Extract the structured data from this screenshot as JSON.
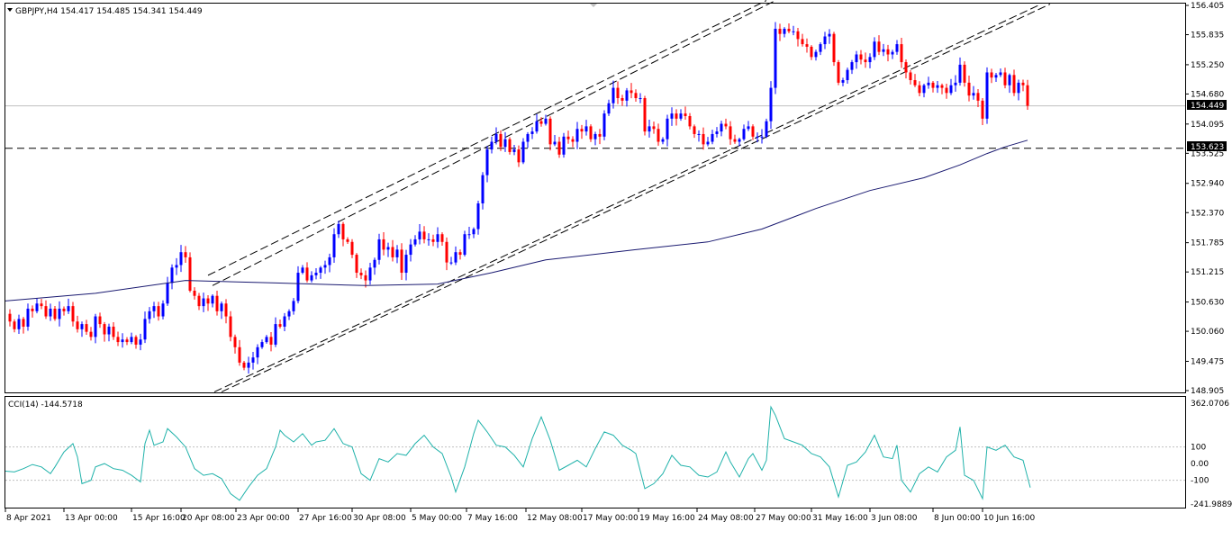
{
  "window": {
    "symbol_line": "GBPJPY,H4  154.417 154.485 154.341 154.449",
    "menu_arrow_icon": "triangle-down"
  },
  "price_axis": {
    "ticks": [
      "156.405",
      "155.835",
      "155.250",
      "154.680",
      "154.095",
      "153.525",
      "152.940",
      "152.370",
      "151.785",
      "151.215",
      "150.630",
      "150.060",
      "149.475",
      "148.905"
    ],
    "current_price": "154.449",
    "level_price": "153.623"
  },
  "cci": {
    "label": "CCI(14) -144.5718",
    "ticks": [
      "362.0706",
      "100",
      "0.00",
      "-100",
      "-241.9889"
    ]
  },
  "time_axis": {
    "labels": [
      "8 Apr 2021",
      "13 Apr 00:00",
      "15 Apr 16:00",
      "20 Apr 08:00",
      "23 Apr 00:00",
      "27 Apr 16:00",
      "30 Apr 08:00",
      "5 May 00:00",
      "7 May 16:00",
      "12 May 08:00",
      "17 May 00:00",
      "19 May 16:00",
      "24 May 08:00",
      "27 May 00:00",
      "31 May 16:00",
      "3 Jun 08:00",
      "8 Jun 00:00",
      "10 Jun 16:00"
    ]
  },
  "colors": {
    "bull": "#0000ff",
    "bear": "#ff0000",
    "ma": "#191970",
    "cci": "#20b2aa",
    "grid_border": "#000000",
    "price_tag_bg": "#000000",
    "price_tag_text": "#ffffff"
  },
  "chart_data": {
    "type": "candlestick",
    "symbol": "GBPJPY",
    "timeframe": "H4",
    "ohlc_last": {
      "open": 154.417,
      "high": 154.485,
      "low": 154.341,
      "close": 154.449
    },
    "ylim": [
      148.905,
      156.405
    ],
    "close_path": [
      [
        0,
        150.4
      ],
      [
        5,
        150.25
      ],
      [
        10,
        150.1
      ],
      [
        15,
        150.3
      ],
      [
        20,
        150.15
      ],
      [
        25,
        150.5
      ],
      [
        30,
        150.45
      ],
      [
        35,
        150.6
      ],
      [
        40,
        150.55
      ],
      [
        45,
        150.35
      ],
      [
        50,
        150.5
      ],
      [
        55,
        150.3
      ],
      [
        60,
        150.5
      ],
      [
        65,
        150.45
      ],
      [
        70,
        150.55
      ],
      [
        75,
        150.25
      ],
      [
        80,
        150.1
      ],
      [
        85,
        150.2
      ],
      [
        90,
        150.05
      ],
      [
        95,
        149.95
      ],
      [
        100,
        150.35
      ],
      [
        105,
        150.2
      ],
      [
        110,
        150.0
      ],
      [
        115,
        150.15
      ],
      [
        120,
        149.95
      ],
      [
        125,
        149.85
      ],
      [
        130,
        149.9
      ],
      [
        135,
        149.85
      ],
      [
        140,
        149.95
      ],
      [
        145,
        149.8
      ],
      [
        150,
        149.9
      ],
      [
        155,
        150.3
      ],
      [
        160,
        150.45
      ],
      [
        165,
        150.55
      ],
      [
        170,
        150.35
      ],
      [
        175,
        150.6
      ],
      [
        180,
        151.0
      ],
      [
        185,
        151.3
      ],
      [
        190,
        151.35
      ],
      [
        195,
        151.6
      ],
      [
        200,
        151.5
      ],
      [
        205,
        150.85
      ],
      [
        210,
        150.75
      ],
      [
        215,
        150.55
      ],
      [
        220,
        150.7
      ],
      [
        225,
        150.6
      ],
      [
        230,
        150.75
      ],
      [
        235,
        150.45
      ],
      [
        240,
        150.6
      ],
      [
        245,
        150.35
      ],
      [
        250,
        149.95
      ],
      [
        255,
        149.75
      ],
      [
        260,
        149.45
      ],
      [
        265,
        149.35
      ],
      [
        270,
        149.45
      ],
      [
        275,
        149.55
      ],
      [
        280,
        149.75
      ],
      [
        285,
        149.85
      ],
      [
        290,
        149.95
      ],
      [
        295,
        149.8
      ],
      [
        300,
        150.2
      ],
      [
        305,
        150.15
      ],
      [
        310,
        150.35
      ],
      [
        315,
        150.45
      ],
      [
        320,
        150.65
      ],
      [
        325,
        151.2
      ],
      [
        330,
        151.3
      ],
      [
        335,
        151.05
      ],
      [
        340,
        151.15
      ],
      [
        345,
        151.2
      ],
      [
        350,
        151.3
      ],
      [
        355,
        151.35
      ],
      [
        360,
        151.5
      ],
      [
        365,
        151.95
      ],
      [
        370,
        152.15
      ],
      [
        375,
        151.85
      ],
      [
        380,
        151.8
      ],
      [
        385,
        151.55
      ],
      [
        390,
        151.2
      ],
      [
        395,
        151.15
      ],
      [
        400,
        151.05
      ],
      [
        405,
        151.3
      ],
      [
        410,
        151.45
      ],
      [
        415,
        151.85
      ],
      [
        420,
        151.65
      ],
      [
        425,
        151.7
      ],
      [
        430,
        151.5
      ],
      [
        435,
        151.65
      ],
      [
        440,
        151.2
      ],
      [
        445,
        151.55
      ],
      [
        450,
        151.75
      ],
      [
        455,
        151.85
      ],
      [
        460,
        152.0
      ],
      [
        465,
        151.85
      ],
      [
        470,
        151.85
      ],
      [
        475,
        151.8
      ],
      [
        480,
        151.95
      ],
      [
        485,
        151.8
      ],
      [
        490,
        151.4
      ],
      [
        495,
        151.4
      ],
      [
        500,
        151.6
      ],
      [
        505,
        151.55
      ],
      [
        510,
        151.95
      ],
      [
        515,
        151.95
      ],
      [
        520,
        152.05
      ],
      [
        525,
        152.55
      ],
      [
        530,
        153.1
      ],
      [
        535,
        153.6
      ],
      [
        540,
        153.75
      ],
      [
        545,
        153.9
      ],
      [
        550,
        153.65
      ],
      [
        555,
        153.8
      ],
      [
        560,
        153.55
      ],
      [
        565,
        153.6
      ],
      [
        570,
        153.35
      ],
      [
        575,
        153.75
      ],
      [
        580,
        153.9
      ],
      [
        585,
        153.95
      ],
      [
        590,
        154.15
      ],
      [
        595,
        154.1
      ],
      [
        600,
        154.2
      ],
      [
        605,
        153.7
      ],
      [
        610,
        153.75
      ],
      [
        615,
        153.5
      ],
      [
        620,
        153.85
      ],
      [
        625,
        153.8
      ],
      [
        630,
        153.75
      ],
      [
        635,
        154.0
      ],
      [
        640,
        153.95
      ],
      [
        645,
        154.05
      ],
      [
        650,
        153.8
      ],
      [
        655,
        153.9
      ],
      [
        660,
        153.85
      ],
      [
        665,
        154.3
      ],
      [
        670,
        154.5
      ],
      [
        675,
        154.8
      ],
      [
        680,
        154.6
      ],
      [
        685,
        154.55
      ],
      [
        690,
        154.75
      ],
      [
        695,
        154.7
      ],
      [
        700,
        154.6
      ],
      [
        705,
        154.6
      ],
      [
        710,
        153.95
      ],
      [
        715,
        154.05
      ],
      [
        720,
        154.0
      ],
      [
        725,
        153.75
      ],
      [
        730,
        153.8
      ],
      [
        735,
        154.2
      ],
      [
        740,
        154.3
      ],
      [
        745,
        154.2
      ],
      [
        750,
        154.3
      ],
      [
        755,
        154.25
      ],
      [
        760,
        154.05
      ],
      [
        765,
        153.9
      ],
      [
        770,
        153.9
      ],
      [
        775,
        153.7
      ],
      [
        780,
        153.75
      ],
      [
        785,
        153.9
      ],
      [
        790,
        153.95
      ],
      [
        795,
        154.1
      ],
      [
        800,
        154.05
      ],
      [
        805,
        153.8
      ],
      [
        810,
        153.75
      ],
      [
        815,
        153.8
      ],
      [
        820,
        154.0
      ],
      [
        825,
        154.05
      ],
      [
        830,
        153.85
      ],
      [
        835,
        153.85
      ],
      [
        840,
        153.85
      ],
      [
        845,
        154.15
      ],
      [
        850,
        154.8
      ],
      [
        855,
        155.95
      ],
      [
        860,
        155.85
      ],
      [
        865,
        155.95
      ],
      [
        870,
        155.9
      ],
      [
        875,
        155.9
      ],
      [
        880,
        155.75
      ],
      [
        885,
        155.65
      ],
      [
        890,
        155.6
      ],
      [
        895,
        155.4
      ],
      [
        900,
        155.5
      ],
      [
        905,
        155.65
      ],
      [
        910,
        155.8
      ],
      [
        915,
        155.85
      ],
      [
        920,
        155.3
      ],
      [
        925,
        154.9
      ],
      [
        930,
        154.95
      ],
      [
        935,
        155.15
      ],
      [
        940,
        155.3
      ],
      [
        945,
        155.45
      ],
      [
        950,
        155.35
      ],
      [
        955,
        155.3
      ],
      [
        960,
        155.4
      ],
      [
        965,
        155.7
      ],
      [
        970,
        155.5
      ],
      [
        975,
        155.55
      ],
      [
        980,
        155.45
      ],
      [
        985,
        155.5
      ],
      [
        990,
        155.65
      ],
      [
        995,
        155.3
      ],
      [
        1000,
        155.1
      ],
      [
        1005,
        154.95
      ],
      [
        1010,
        154.85
      ],
      [
        1015,
        154.7
      ],
      [
        1020,
        154.85
      ],
      [
        1025,
        154.9
      ],
      [
        1030,
        154.8
      ],
      [
        1035,
        154.85
      ],
      [
        1040,
        154.8
      ],
      [
        1045,
        154.7
      ],
      [
        1050,
        154.85
      ],
      [
        1055,
        154.9
      ],
      [
        1060,
        155.25
      ],
      [
        1065,
        154.9
      ],
      [
        1070,
        154.65
      ],
      [
        1075,
        154.7
      ],
      [
        1080,
        154.55
      ],
      [
        1085,
        154.2
      ],
      [
        1090,
        155.1
      ],
      [
        1095,
        155.0
      ],
      [
        1100,
        155.05
      ],
      [
        1105,
        155.1
      ],
      [
        1110,
        154.85
      ],
      [
        1115,
        155.05
      ],
      [
        1120,
        154.7
      ],
      [
        1125,
        154.9
      ],
      [
        1130,
        154.85
      ],
      [
        1135,
        154.45
      ]
    ],
    "moving_average": [
      [
        0,
        150.65
      ],
      [
        100,
        150.8
      ],
      [
        200,
        151.05
      ],
      [
        300,
        151.0
      ],
      [
        400,
        150.95
      ],
      [
        480,
        150.98
      ],
      [
        540,
        151.2
      ],
      [
        600,
        151.45
      ],
      [
        700,
        151.65
      ],
      [
        780,
        151.8
      ],
      [
        840,
        152.05
      ],
      [
        900,
        152.45
      ],
      [
        960,
        152.8
      ],
      [
        1020,
        153.05
      ],
      [
        1060,
        153.3
      ],
      [
        1090,
        153.52
      ],
      [
        1110,
        153.65
      ],
      [
        1135,
        153.78
      ]
    ],
    "horizontal_line": 153.623,
    "channel_upper": [
      [
        225,
        151.15
      ],
      [
        845,
        156.5
      ]
    ],
    "channel_upper_inner": [
      [
        230,
        150.95
      ],
      [
        855,
        156.5
      ]
    ],
    "channel_lower": [
      [
        232,
        148.88
      ],
      [
        1150,
        156.43
      ]
    ],
    "channel_lower_inner": [
      [
        240,
        148.88
      ],
      [
        1160,
        156.43
      ]
    ],
    "cci_ylim": [
      -241.9889,
      362.0706
    ],
    "cci_values": [
      [
        0,
        -45
      ],
      [
        10,
        -50
      ],
      [
        20,
        -30
      ],
      [
        30,
        -5
      ],
      [
        40,
        -20
      ],
      [
        50,
        -60
      ],
      [
        55,
        -20
      ],
      [
        65,
        70
      ],
      [
        75,
        120
      ],
      [
        80,
        40
      ],
      [
        85,
        -120
      ],
      [
        95,
        -100
      ],
      [
        100,
        -20
      ],
      [
        110,
        0
      ],
      [
        120,
        -30
      ],
      [
        130,
        -40
      ],
      [
        140,
        -70
      ],
      [
        150,
        -110
      ],
      [
        155,
        120
      ],
      [
        160,
        200
      ],
      [
        165,
        110
      ],
      [
        175,
        130
      ],
      [
        180,
        210
      ],
      [
        190,
        160
      ],
      [
        200,
        100
      ],
      [
        210,
        -30
      ],
      [
        220,
        -70
      ],
      [
        230,
        -60
      ],
      [
        240,
        -90
      ],
      [
        250,
        -180
      ],
      [
        260,
        -220
      ],
      [
        270,
        -140
      ],
      [
        280,
        -70
      ],
      [
        290,
        -30
      ],
      [
        300,
        100
      ],
      [
        305,
        200
      ],
      [
        310,
        170
      ],
      [
        320,
        130
      ],
      [
        330,
        180
      ],
      [
        340,
        110
      ],
      [
        345,
        130
      ],
      [
        355,
        140
      ],
      [
        365,
        210
      ],
      [
        375,
        120
      ],
      [
        385,
        100
      ],
      [
        395,
        -60
      ],
      [
        405,
        -100
      ],
      [
        415,
        30
      ],
      [
        425,
        10
      ],
      [
        435,
        60
      ],
      [
        445,
        50
      ],
      [
        455,
        120
      ],
      [
        465,
        170
      ],
      [
        475,
        100
      ],
      [
        485,
        60
      ],
      [
        495,
        -80
      ],
      [
        500,
        -170
      ],
      [
        510,
        -20
      ],
      [
        520,
        180
      ],
      [
        525,
        260
      ],
      [
        535,
        190
      ],
      [
        545,
        110
      ],
      [
        555,
        100
      ],
      [
        565,
        50
      ],
      [
        575,
        -20
      ],
      [
        585,
        150
      ],
      [
        595,
        280
      ],
      [
        605,
        140
      ],
      [
        615,
        -40
      ],
      [
        625,
        -10
      ],
      [
        635,
        20
      ],
      [
        645,
        -20
      ],
      [
        655,
        90
      ],
      [
        665,
        190
      ],
      [
        675,
        170
      ],
      [
        685,
        110
      ],
      [
        695,
        80
      ],
      [
        700,
        60
      ],
      [
        710,
        -150
      ],
      [
        720,
        -120
      ],
      [
        730,
        -60
      ],
      [
        740,
        50
      ],
      [
        750,
        -10
      ],
      [
        760,
        -20
      ],
      [
        770,
        -70
      ],
      [
        780,
        -80
      ],
      [
        790,
        -50
      ],
      [
        800,
        70
      ],
      [
        805,
        10
      ],
      [
        815,
        -80
      ],
      [
        825,
        30
      ],
      [
        830,
        60
      ],
      [
        840,
        -40
      ],
      [
        845,
        20
      ],
      [
        850,
        340
      ],
      [
        855,
        290
      ],
      [
        865,
        150
      ],
      [
        875,
        130
      ],
      [
        885,
        110
      ],
      [
        895,
        60
      ],
      [
        905,
        40
      ],
      [
        915,
        -20
      ],
      [
        925,
        -200
      ],
      [
        935,
        -10
      ],
      [
        945,
        10
      ],
      [
        955,
        70
      ],
      [
        965,
        170
      ],
      [
        975,
        40
      ],
      [
        985,
        30
      ],
      [
        990,
        110
      ],
      [
        995,
        -100
      ],
      [
        1005,
        -170
      ],
      [
        1015,
        -60
      ],
      [
        1025,
        -20
      ],
      [
        1035,
        -50
      ],
      [
        1045,
        40
      ],
      [
        1055,
        80
      ],
      [
        1060,
        220
      ],
      [
        1065,
        -70
      ],
      [
        1075,
        -100
      ],
      [
        1085,
        -210
      ],
      [
        1090,
        100
      ],
      [
        1100,
        80
      ],
      [
        1110,
        110
      ],
      [
        1120,
        40
      ],
      [
        1130,
        20
      ],
      [
        1138,
        -144
      ]
    ]
  }
}
